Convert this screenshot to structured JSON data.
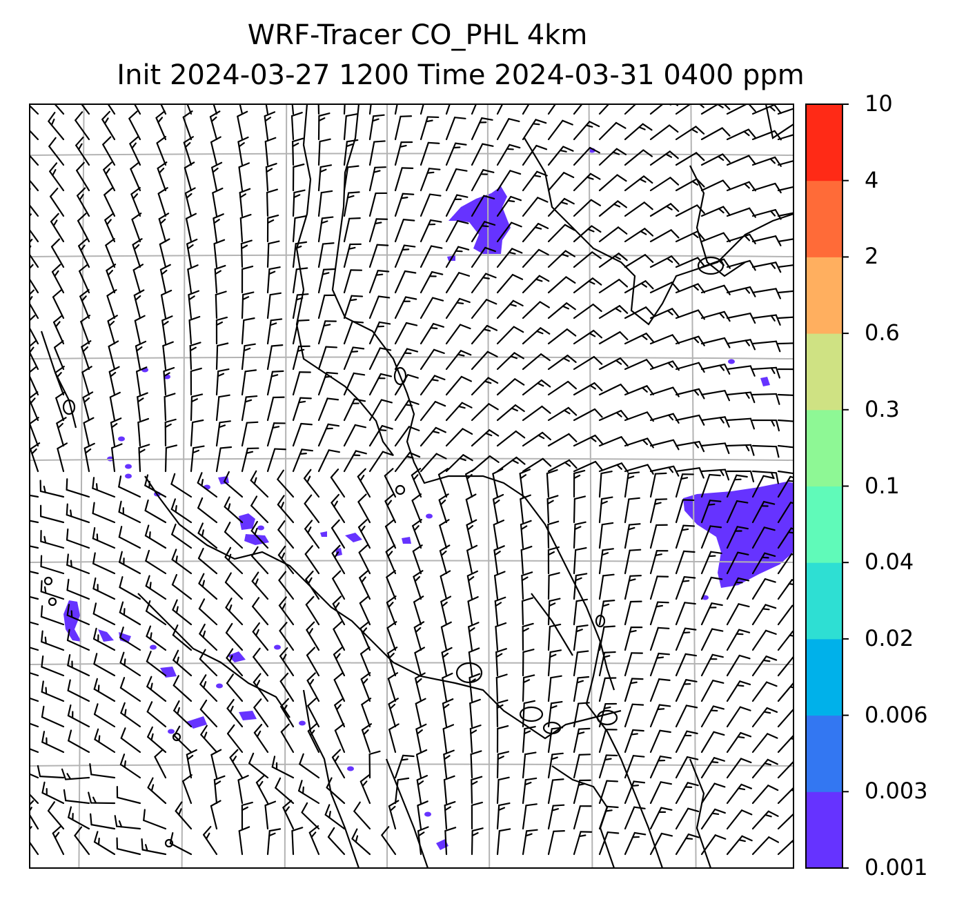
{
  "title_line1": "WRF-Tracer CO_PHL 4km",
  "title_line2": "Init 2024-03-27 1200 Time 2024-03-31 0400 ppm",
  "colorbar": {
    "levels": [
      "0.001",
      "0.003",
      "0.006",
      "0.02",
      "0.04",
      "0.1",
      "0.3",
      "0.6",
      "2",
      "4",
      "10"
    ],
    "colors": [
      "#6633ff",
      "#3377f2",
      "#00b1ea",
      "#2edfd3",
      "#60fab9",
      "#8ef895",
      "#cfe283",
      "#ffaf5f",
      "#ff6b38",
      "#ff2a16"
    ]
  },
  "map": {
    "contour_fill_color": "#6633ff",
    "coastline_color": "#000000",
    "gridline_color": "#b3b3b3",
    "wind_barb_color": "#000000"
  }
}
